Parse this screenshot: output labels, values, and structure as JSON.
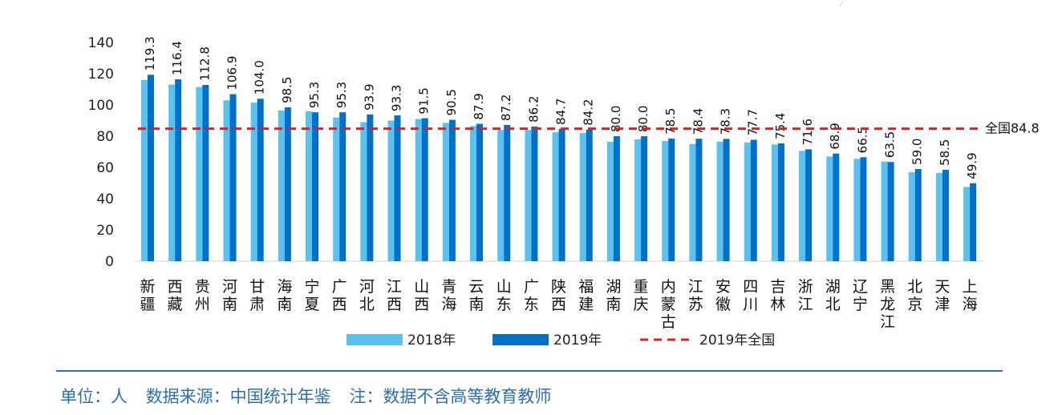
{
  "chart_data": {
    "type": "bar",
    "categories": [
      "新疆",
      "西藏",
      "贵州",
      "河南",
      "甘肃",
      "海南",
      "宁夏",
      "广西",
      "河北",
      "江西",
      "山西",
      "青海",
      "云南",
      "山东",
      "广东",
      "陕西",
      "福建",
      "湖南",
      "重庆",
      "内蒙古",
      "江苏",
      "安徽",
      "四川",
      "吉林",
      "浙江",
      "湖北",
      "辽宁",
      "黑龙江",
      "北京",
      "天津",
      "上海"
    ],
    "series": [
      {
        "name": "2018年",
        "color": "#5bc1f0",
        "values": [
          116.0,
          113.0,
          111.5,
          103.0,
          101.5,
          96.5,
          96.0,
          92.0,
          89.0,
          90.0,
          91.0,
          88.5,
          86.5,
          84.0,
          84.0,
          82.5,
          82.0,
          76.5,
          78.0,
          77.0,
          75.0,
          76.5,
          76.0,
          74.7,
          70.6,
          67.0,
          65.5,
          63.8,
          57.0,
          56.5,
          47.5
        ]
      },
      {
        "name": "2019年",
        "color": "#0070c8",
        "values": [
          119.3,
          116.4,
          112.8,
          106.9,
          104.0,
          98.5,
          95.3,
          95.3,
          93.9,
          93.3,
          91.5,
          90.5,
          87.9,
          87.2,
          86.2,
          84.7,
          84.2,
          80.0,
          80.0,
          78.5,
          78.4,
          78.3,
          77.7,
          75.4,
          71.6,
          68.9,
          66.5,
          63.5,
          59.0,
          58.5,
          49.9
        ]
      }
    ],
    "data_labels": [
      "119.3",
      "116.4",
      "112.8",
      "106.9",
      "104.0",
      "98.5",
      "95.3",
      "95.3",
      "93.9",
      "93.3",
      "91.5",
      "90.5",
      "87.9",
      "87.2",
      "86.2",
      "84.7",
      "84.2",
      "80.0",
      "80.0",
      "78.5",
      "78.4",
      "78.3",
      "77.7",
      "75.4",
      "71.6",
      "68.9",
      "66.5",
      "63.5",
      "59.0",
      "58.5",
      "49.9"
    ],
    "reference_line": {
      "name": "2019年全国",
      "value": 84.8,
      "label": "全国84.8",
      "color": "#e02020"
    },
    "ylim": [
      0,
      140
    ],
    "yticks": [
      "0",
      "20",
      "40",
      "60",
      "80",
      "100",
      "120",
      "140"
    ],
    "grid": false,
    "legend_position": "bottom"
  },
  "footer": {
    "unit": "单位：人",
    "source": "数据来源：中国统计年鉴",
    "note": "注：数据不含高等教育教师"
  }
}
